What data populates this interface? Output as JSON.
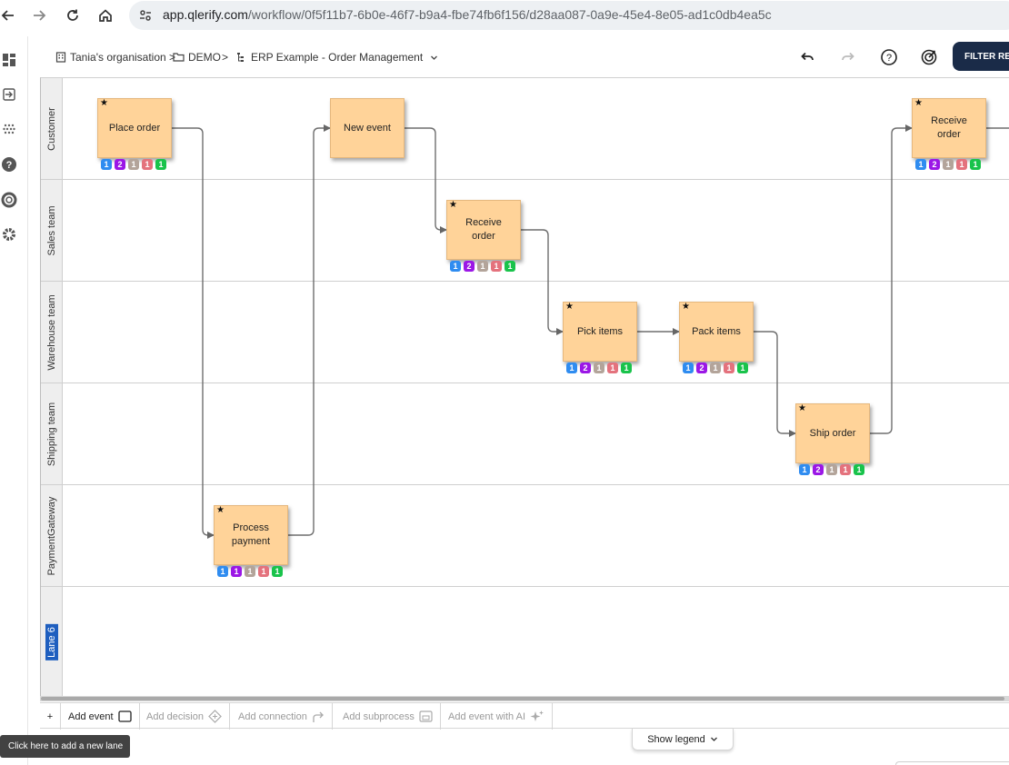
{
  "browser": {
    "url_host": "app.qlerify.com",
    "url_path": "/workflow/0f5f11b7-6b0e-46f7-b9a4-fbe74fb6f156/d28aa087-0a9e-45e4-8e05-ad1c0db4ea5c",
    "icons": [
      "back-icon",
      "forward-icon",
      "reload-icon",
      "home-icon",
      "site-info-icon"
    ]
  },
  "left_rail": {
    "icons": [
      "dashboard-icon",
      "sign-in-icon",
      "grid-dots-icon",
      "help-icon",
      "lifebuoy-icon",
      "settings-icon"
    ]
  },
  "header": {
    "breadcrumb": {
      "organisation": "Tania's organisation >",
      "folder": "DEMO",
      "separator": ">",
      "workflow": "ERP Example - Order Management"
    },
    "filter_button": "FILTER RE",
    "icons": [
      "undo-icon",
      "redo-icon",
      "help-icon",
      "target-icon"
    ]
  },
  "lanes": [
    {
      "label": "Customer"
    },
    {
      "label": "Sales team"
    },
    {
      "label": "Warehouse team"
    },
    {
      "label": "Shipping team"
    },
    {
      "label": "PaymentGateway"
    },
    {
      "label": "Lane 6"
    }
  ],
  "events": [
    {
      "id": "place-order",
      "label": "Place order",
      "star": "★",
      "badges": [
        "1",
        "2",
        "1",
        "1",
        "1"
      ]
    },
    {
      "id": "new-event",
      "label": "New event",
      "star": "",
      "badges": []
    },
    {
      "id": "receive-order-sales",
      "label": "Receive order",
      "star": "★",
      "badges": [
        "1",
        "2",
        "1",
        "1",
        "1"
      ]
    },
    {
      "id": "pick-items",
      "label": "Pick items",
      "star": "★",
      "badges": [
        "1",
        "2",
        "1",
        "1",
        "1"
      ]
    },
    {
      "id": "pack-items",
      "label": "Pack items",
      "star": "★",
      "badges": [
        "1",
        "2",
        "1",
        "1",
        "1"
      ]
    },
    {
      "id": "ship-order",
      "label": "Ship order",
      "star": "★",
      "badges": [
        "1",
        "2",
        "1",
        "1",
        "1"
      ]
    },
    {
      "id": "process-payment",
      "label": "Process payment",
      "star": "★",
      "badges": [
        "1",
        "1",
        "1",
        "1",
        "1"
      ]
    },
    {
      "id": "receive-order-customer",
      "label": "Receive order",
      "star": "★",
      "badges": [
        "1",
        "2",
        "1",
        "1",
        "1"
      ]
    }
  ],
  "badge_colors": [
    "#2f8cf0",
    "#9b17e6",
    "#b3a49a",
    "#e4727d",
    "#19c34b"
  ],
  "toolbar": {
    "plus": "+",
    "add_event": "Add event",
    "add_decision": "Add decision",
    "add_connection": "Add connection",
    "add_subprocess": "Add subprocess",
    "add_event_ai": "Add event with AI"
  },
  "legend": {
    "label": "Show legend"
  },
  "tooltip": {
    "text": "Click here to add a new lane"
  },
  "colors": {
    "event_fill": "#ffd399",
    "filter_button_bg": "#1a2b48",
    "selected_lane": "#1f5fbf"
  }
}
